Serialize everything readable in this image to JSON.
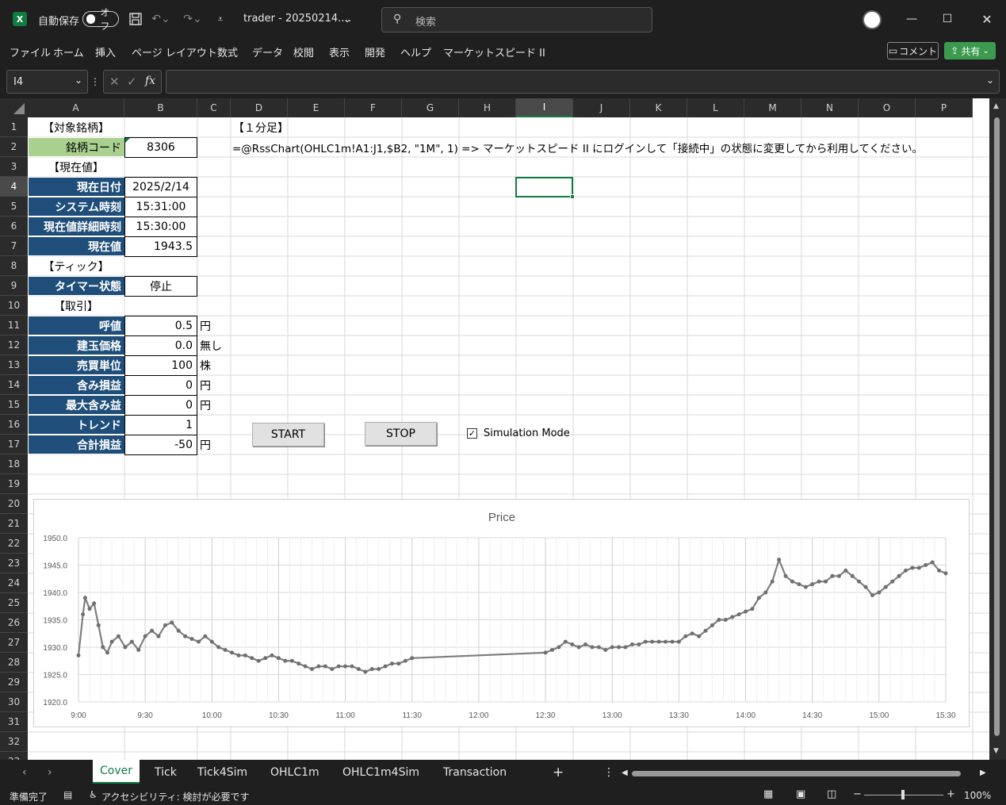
{
  "titlebar": {
    "autosave_label": "自動保存",
    "autosave_state": "オフ",
    "filename": "trader - 20250214.…",
    "search_placeholder": "検索"
  },
  "menu": [
    "ファイル",
    "ホーム",
    "挿入",
    "ページ レイアウト",
    "数式",
    "データ",
    "校閲",
    "表示",
    "開発",
    "ヘルプ",
    "マーケットスピード II"
  ],
  "menu_right": {
    "comment": "コメント",
    "share": "共有"
  },
  "formula": {
    "namebox": "I4",
    "content": ""
  },
  "columns": [
    "A",
    "B",
    "C",
    "D",
    "E",
    "F",
    "G",
    "H",
    "I",
    "J",
    "K",
    "L",
    "M",
    "N",
    "O",
    "P"
  ],
  "rows": [
    "1",
    "2",
    "3",
    "4",
    "5",
    "6",
    "7",
    "8",
    "9",
    "10",
    "11",
    "12",
    "13",
    "14",
    "15",
    "16",
    "17",
    "18",
    "19",
    "20",
    "21",
    "22",
    "23",
    "24",
    "25",
    "26",
    "27",
    "28",
    "29",
    "30",
    "31",
    "32",
    "33"
  ],
  "cells": {
    "a1": "【対象銘柄】",
    "a2": "銘柄コード",
    "b2": "8306",
    "a3": "【現在値】",
    "a4": "現在日付",
    "b4": "2025/2/14",
    "a5": "システム時刻",
    "b5": "15:31:00",
    "a6": "現在値詳細時刻",
    "b6": "15:30:00",
    "a7": "現在値",
    "b7": "1943.5",
    "a8": "【ティック】",
    "a9": "タイマー状態",
    "b9": "停止",
    "a10": "【取引】",
    "a11": "呼値",
    "b11": "0.5",
    "c11": "円",
    "a12": "建玉価格",
    "b12": "0.0",
    "c12": "無し",
    "a13": "売買単位",
    "b13": "100",
    "c13": "株",
    "a14": "含み損益",
    "b14": "0",
    "c14": "円",
    "a15": "最大含み益",
    "b15": "0",
    "c15": "円",
    "a16": "トレンド",
    "b16": "1",
    "a17": "合計損益",
    "b17": "-50",
    "c17": "円",
    "d1": "【１分足】",
    "d2": "=@RssChart(OHLC1m!A1:J1,$B2, \"1M\", 1) => マーケットスピード II にログインして「接続中」の状態に変更してから利用してください。"
  },
  "buttons": {
    "start": "START",
    "stop": "STOP",
    "sim": "Simulation Mode"
  },
  "sheets": [
    "Cover",
    "Tick",
    "Tick4Sim",
    "OHLC1m",
    "OHLC1m4Sim",
    "Transaction"
  ],
  "status": {
    "ready": "準備完了",
    "accessibility": "アクセシビリティ: 検討が必要です",
    "zoom": "100%"
  },
  "chart_data": {
    "type": "line",
    "title": "Price",
    "ylim": [
      1920,
      1950
    ],
    "yticks": [
      "1950.0",
      "1945.0",
      "1940.0",
      "1935.0",
      "1930.0",
      "1925.0",
      "1920.0"
    ],
    "xticks": [
      "9:00",
      "9:30",
      "10:00",
      "10:30",
      "11:00",
      "11:30",
      "12:00",
      "12:30",
      "13:00",
      "13:30",
      "14:00",
      "14:30",
      "15:00",
      "15:30"
    ],
    "series": [
      {
        "points": [
          [
            "9:00",
            1928.5
          ],
          [
            "9:02",
            1936
          ],
          [
            "9:03",
            1939
          ],
          [
            "9:05",
            1937
          ],
          [
            "9:07",
            1938
          ],
          [
            "9:09",
            1934
          ],
          [
            "9:11",
            1930
          ],
          [
            "9:13",
            1929
          ],
          [
            "9:15",
            1931
          ],
          [
            "9:18",
            1932
          ],
          [
            "9:21",
            1930
          ],
          [
            "9:24",
            1931
          ],
          [
            "9:27",
            1929.5
          ],
          [
            "9:30",
            1932
          ],
          [
            "9:33",
            1933
          ],
          [
            "9:36",
            1932
          ],
          [
            "9:39",
            1934
          ],
          [
            "9:42",
            1934.5
          ],
          [
            "9:45",
            1933
          ],
          [
            "9:48",
            1932
          ],
          [
            "9:51",
            1931.5
          ],
          [
            "9:54",
            1931
          ],
          [
            "9:57",
            1932
          ],
          [
            "10:00",
            1931
          ],
          [
            "10:03",
            1930
          ],
          [
            "10:06",
            1929.5
          ],
          [
            "10:09",
            1929
          ],
          [
            "10:12",
            1928.5
          ],
          [
            "10:15",
            1928.5
          ],
          [
            "10:18",
            1928
          ],
          [
            "10:21",
            1927.5
          ],
          [
            "10:24",
            1928
          ],
          [
            "10:27",
            1928.5
          ],
          [
            "10:30",
            1928
          ],
          [
            "10:33",
            1927.5
          ],
          [
            "10:36",
            1927.5
          ],
          [
            "10:39",
            1927
          ],
          [
            "10:42",
            1926.5
          ],
          [
            "10:45",
            1926
          ],
          [
            "10:48",
            1926.5
          ],
          [
            "10:51",
            1926.5
          ],
          [
            "10:54",
            1926
          ],
          [
            "10:57",
            1926.5
          ],
          [
            "11:00",
            1926.5
          ],
          [
            "11:03",
            1926.5
          ],
          [
            "11:06",
            1926
          ],
          [
            "11:09",
            1925.5
          ],
          [
            "11:12",
            1926
          ],
          [
            "11:15",
            1926
          ],
          [
            "11:18",
            1926.5
          ],
          [
            "11:21",
            1927
          ],
          [
            "11:24",
            1927
          ],
          [
            "11:27",
            1927.5
          ],
          [
            "11:30",
            1928
          ],
          [
            "12:30",
            1929
          ],
          [
            "12:33",
            1929.5
          ],
          [
            "12:36",
            1930
          ],
          [
            "12:39",
            1931
          ],
          [
            "12:42",
            1930.5
          ],
          [
            "12:45",
            1930
          ],
          [
            "12:48",
            1930.5
          ],
          [
            "12:51",
            1930
          ],
          [
            "12:54",
            1930
          ],
          [
            "12:57",
            1929.5
          ],
          [
            "13:00",
            1930
          ],
          [
            "13:03",
            1930
          ],
          [
            "13:06",
            1930
          ],
          [
            "13:09",
            1930.5
          ],
          [
            "13:12",
            1930.5
          ],
          [
            "13:15",
            1931
          ],
          [
            "13:18",
            1931
          ],
          [
            "13:21",
            1931
          ],
          [
            "13:24",
            1931
          ],
          [
            "13:27",
            1931
          ],
          [
            "13:30",
            1931
          ],
          [
            "13:33",
            1932
          ],
          [
            "13:36",
            1932.5
          ],
          [
            "13:39",
            1932
          ],
          [
            "13:42",
            1933
          ],
          [
            "13:45",
            1934
          ],
          [
            "13:48",
            1935
          ],
          [
            "13:51",
            1935
          ],
          [
            "13:54",
            1935.5
          ],
          [
            "13:57",
            1936
          ],
          [
            "14:00",
            1936.5
          ],
          [
            "14:03",
            1937
          ],
          [
            "14:06",
            1939
          ],
          [
            "14:09",
            1940
          ],
          [
            "14:12",
            1942
          ],
          [
            "14:15",
            1946
          ],
          [
            "14:18",
            1943
          ],
          [
            "14:21",
            1942
          ],
          [
            "14:24",
            1941.5
          ],
          [
            "14:27",
            1941
          ],
          [
            "14:30",
            1941.5
          ],
          [
            "14:33",
            1942
          ],
          [
            "14:36",
            1942
          ],
          [
            "14:39",
            1943
          ],
          [
            "14:42",
            1943
          ],
          [
            "14:45",
            1944
          ],
          [
            "14:48",
            1943
          ],
          [
            "14:51",
            1942
          ],
          [
            "14:54",
            1941
          ],
          [
            "14:57",
            1939.5
          ],
          [
            "15:00",
            1940
          ],
          [
            "15:03",
            1941
          ],
          [
            "15:06",
            1942
          ],
          [
            "15:09",
            1943
          ],
          [
            "15:12",
            1944
          ],
          [
            "15:15",
            1944.5
          ],
          [
            "15:18",
            1944.5
          ],
          [
            "15:21",
            1945
          ],
          [
            "15:24",
            1945.5
          ],
          [
            "15:27",
            1944
          ],
          [
            "15:30",
            1943.5
          ]
        ]
      }
    ]
  }
}
